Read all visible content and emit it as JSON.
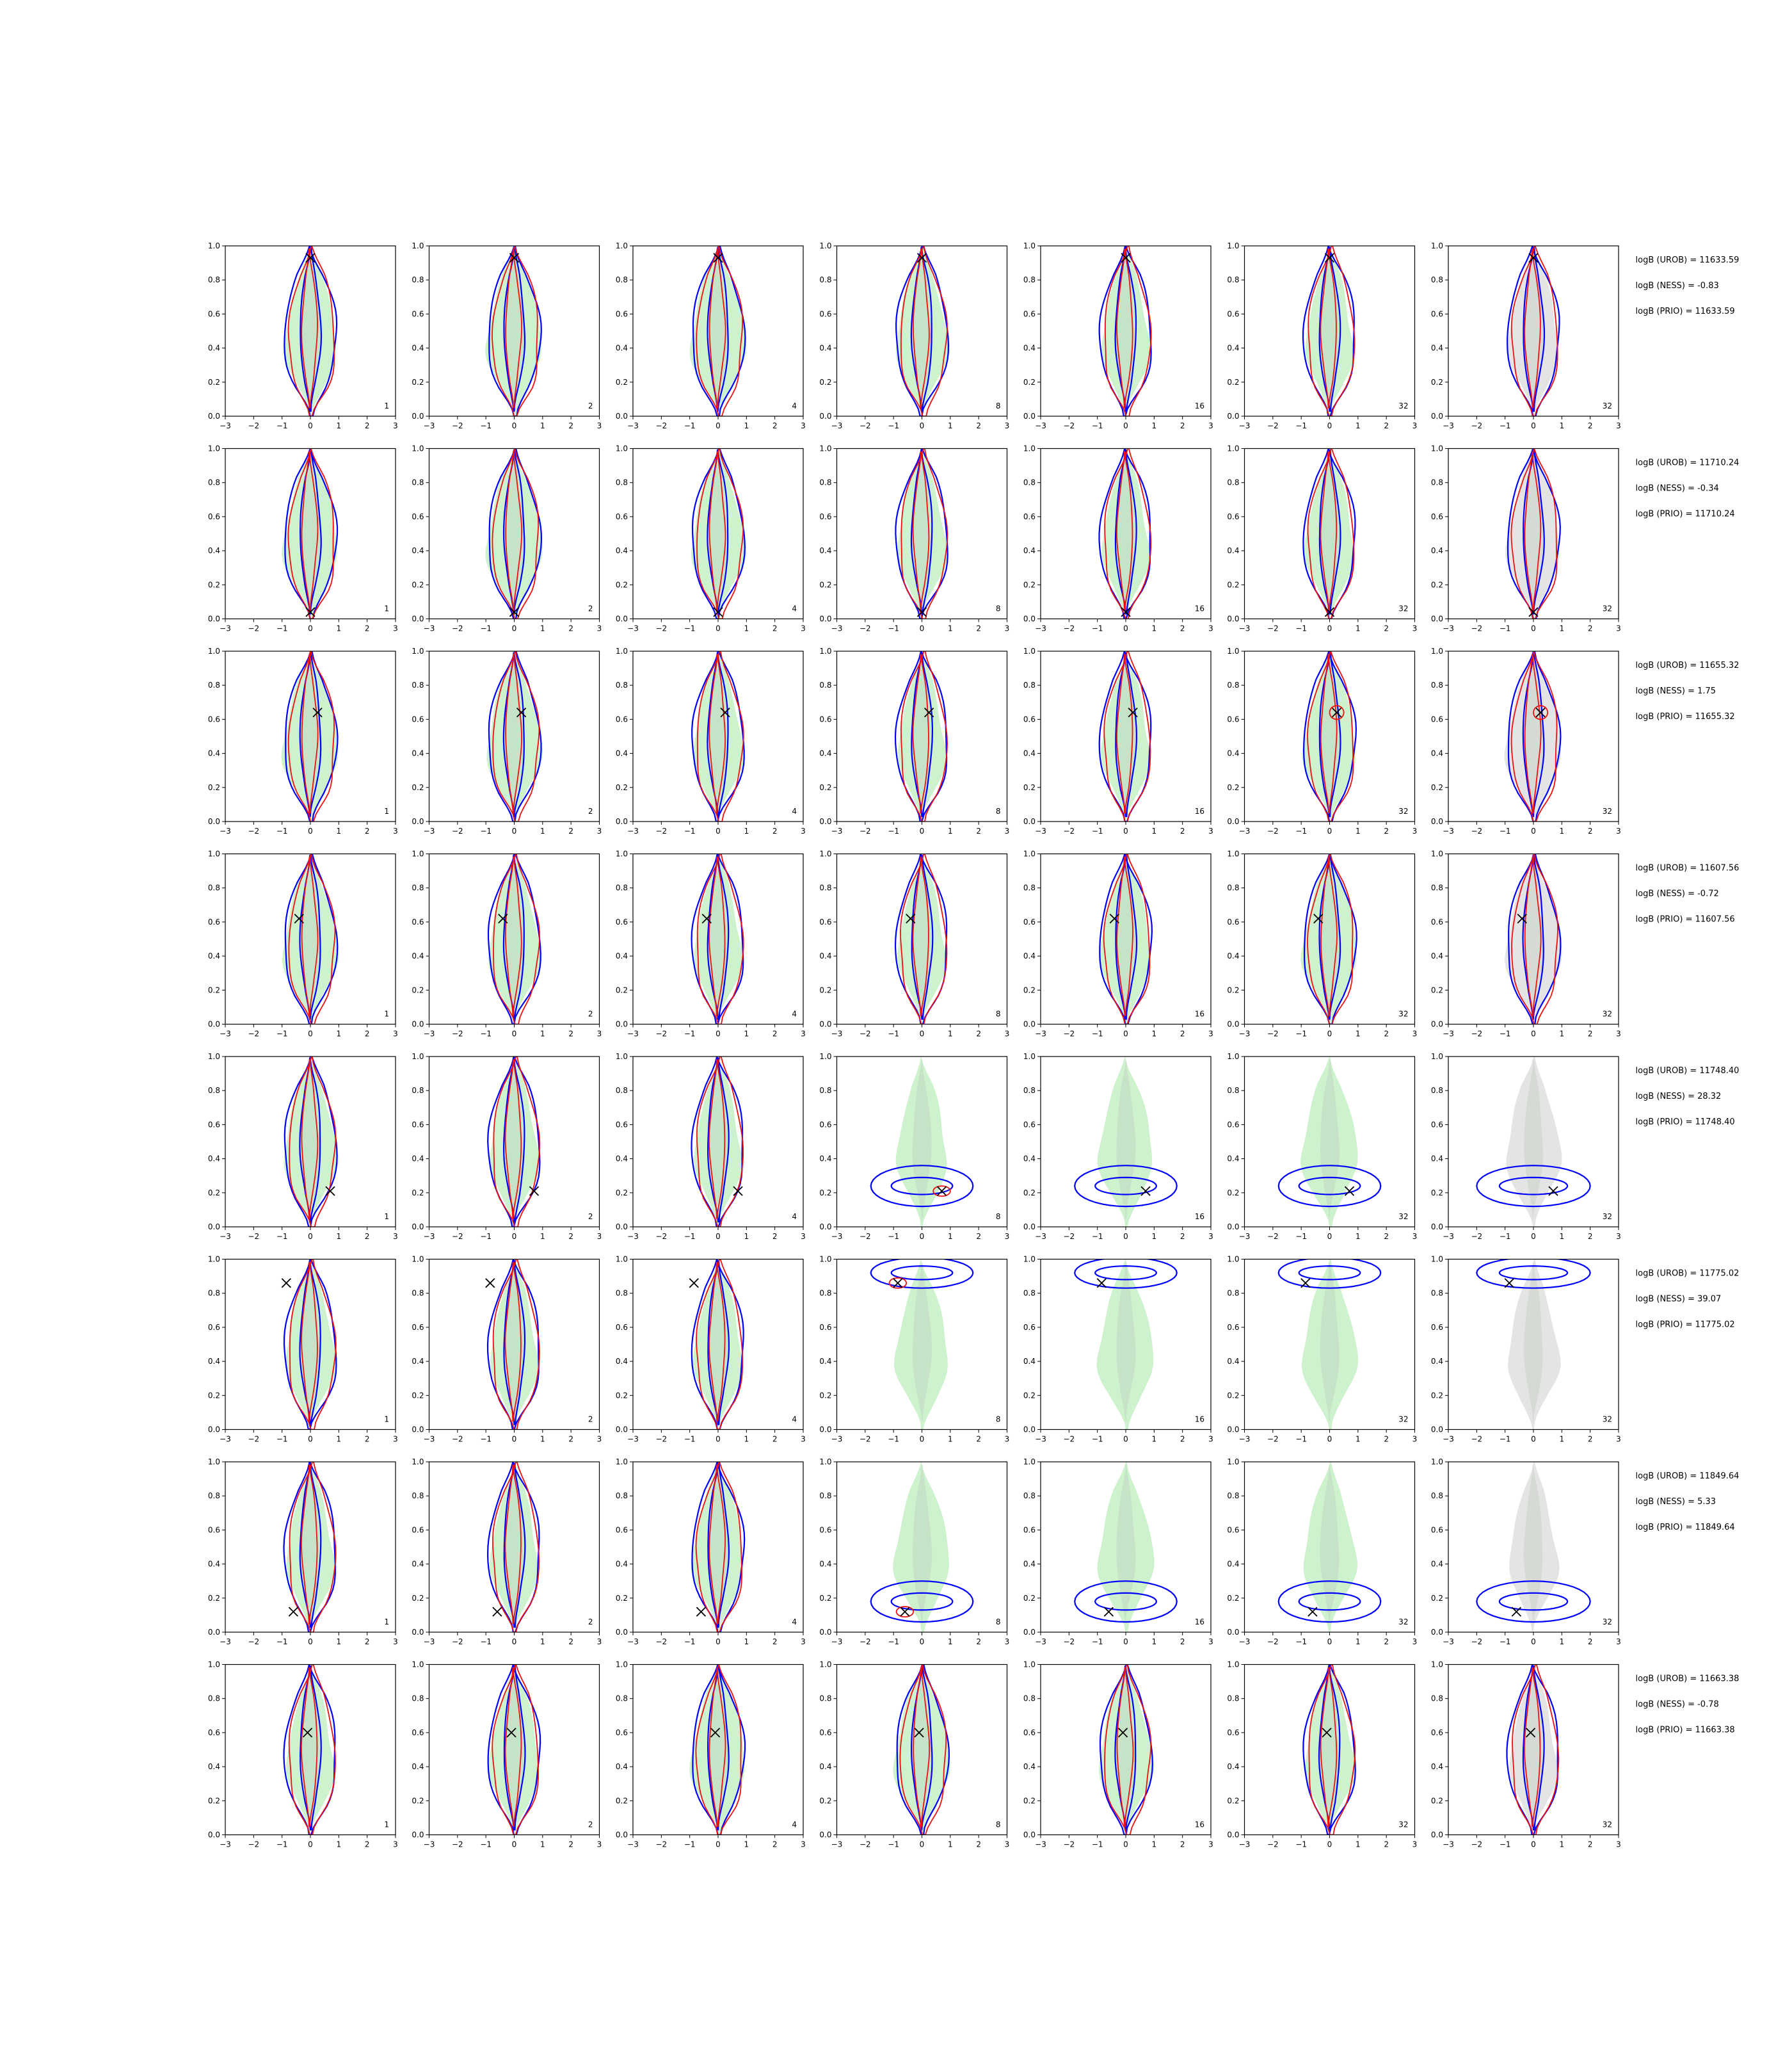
{
  "chart_data": {
    "type": "contour-grid",
    "rows": 8,
    "cols": 7,
    "xlim": [
      -3,
      3
    ],
    "ylim": [
      0,
      1
    ],
    "x_ticks": [
      -3,
      -2,
      -1,
      0,
      1,
      2,
      3
    ],
    "y_ticks": [
      "0.0",
      "0.2",
      "0.4",
      "0.6",
      "0.8",
      "1.0"
    ],
    "panel_labels": [
      "1",
      "2",
      "4",
      "8",
      "16",
      "32",
      "32"
    ],
    "colors": {
      "green_fill": "#c6efc6",
      "gray_fill": "#d8d8d8",
      "blue_contour": "#0000ff",
      "red_contour": "#ee1111",
      "marker": "#000000"
    },
    "marker": "x",
    "row_data": [
      {
        "marker": [
          0.0,
          0.93
        ],
        "layout": "vertical",
        "evidence": [
          "logB (UROB) = 11633.59",
          "logB (NESS) = -0.83",
          "logB (PRIO) = 11633.59"
        ]
      },
      {
        "marker": [
          0.0,
          0.04
        ],
        "layout": "vertical",
        "evidence": [
          "logB (UROB) = 11710.24",
          "logB (NESS) = -0.34",
          "logB (PRIO) = 11710.24"
        ]
      },
      {
        "marker": [
          0.25,
          0.64
        ],
        "layout": "vertical",
        "evidence": [
          "logB (UROB) = 11655.32",
          "logB (NESS) = 1.75",
          "logB (PRIO) = 11655.32"
        ]
      },
      {
        "marker": [
          -0.4,
          0.62
        ],
        "layout": "vertical",
        "evidence": [
          "logB (UROB) = 11607.56",
          "logB (NESS) = -0.72",
          "logB (PRIO) = 11607.56"
        ]
      },
      {
        "marker": [
          0.7,
          0.21
        ],
        "layout": "horizontal",
        "evidence": [
          "logB (UROB) = 11748.40",
          "logB (NESS) = 28.32",
          "logB (PRIO) = 11748.40"
        ]
      },
      {
        "marker": [
          -0.85,
          0.86
        ],
        "layout": "top",
        "evidence": [
          "logB (UROB) = 11775.02",
          "logB (NESS) = 39.07",
          "logB (PRIO) = 11775.02"
        ]
      },
      {
        "marker": [
          -0.6,
          0.12
        ],
        "layout": "horizontal",
        "evidence": [
          "logB (UROB) = 11849.64",
          "logB (NESS) = 5.33",
          "logB (PRIO) = 11849.64"
        ]
      },
      {
        "marker": [
          -0.1,
          0.6
        ],
        "layout": "vertical",
        "evidence": [
          "logB (UROB) = 11663.38",
          "logB (NESS) = -0.78",
          "logB (PRIO) = 11663.38"
        ]
      }
    ]
  }
}
